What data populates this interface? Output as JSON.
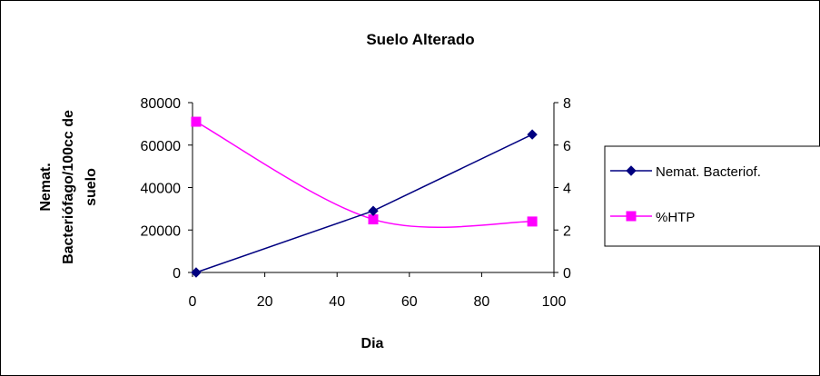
{
  "chart_data": {
    "type": "line",
    "title": "Suelo Alterado",
    "xlabel": "Dia",
    "ylabel": "Nemat. Bacteriófago/100cc de suelo",
    "ylabel_lines": [
      "Nemat.",
      "Bacteriófago/100cc de",
      "suelo"
    ],
    "xlim": [
      0,
      100
    ],
    "ylim": [
      0,
      80000
    ],
    "y2lim": [
      0,
      8
    ],
    "x_ticks": [
      "0",
      "20",
      "40",
      "60",
      "80",
      "100"
    ],
    "y_ticks": [
      "0",
      "20000",
      "40000",
      "60000",
      "80000"
    ],
    "y2_ticks": [
      "0",
      "2",
      "4",
      "6",
      "8"
    ],
    "grid": false,
    "legend_position": "right",
    "series": [
      {
        "name": "Nemat. Bacteriof.",
        "axis": "left",
        "color": "#000080",
        "marker": "diamond",
        "smooth": false,
        "x": [
          1,
          50,
          94
        ],
        "y": [
          0,
          29000,
          65000
        ]
      },
      {
        "name": "%HTP",
        "axis": "right",
        "color": "#FF00FF",
        "marker": "square",
        "smooth": true,
        "x": [
          1,
          50,
          94
        ],
        "y": [
          7.1,
          2.5,
          2.4
        ]
      }
    ]
  }
}
